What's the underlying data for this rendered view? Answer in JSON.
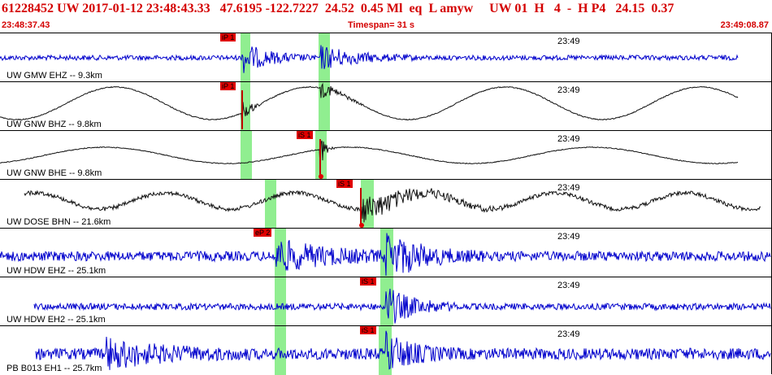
{
  "header": {
    "title": "61228452 UW 2017-01-12 23:48:43.33   47.6195 -122.7227  24.52  0.45 Ml  eq  L amyw     UW 01  H   4  -  H P4   24.15  0.37",
    "start_time": "23:48:37.43",
    "timespan": "Timespan=  31 s",
    "end_time": "23:49:08.87"
  },
  "tick_label": "23:49",
  "colors": {
    "blue_trace": "#0000cc",
    "black_trace": "#111111",
    "window": "#90ee90",
    "pick": "#e00000",
    "header_text": "#d40000"
  },
  "channels": [
    {
      "label": "UW GMW EHZ -- 9.3km",
      "pick": "iP 1",
      "color": "blue"
    },
    {
      "label": "UW GNW BHZ -- 9.8km",
      "pick": "iP 1",
      "color": "black"
    },
    {
      "label": "UW GNW BHE -- 9.8km",
      "pick": "iS 1",
      "color": "black"
    },
    {
      "label": "UW DOSE BHN -- 21.6km",
      "pick": "iS 1",
      "color": "black"
    },
    {
      "label": "UW HDW EHZ -- 25.1km",
      "pick": "eP 2",
      "color": "blue"
    },
    {
      "label": "UW HDW EH2 -- 25.1km",
      "pick": "iS 1",
      "color": "blue"
    },
    {
      "label": "PB B013 EH1 -- 25.7km",
      "pick": "iS 1",
      "color": "blue"
    }
  ]
}
